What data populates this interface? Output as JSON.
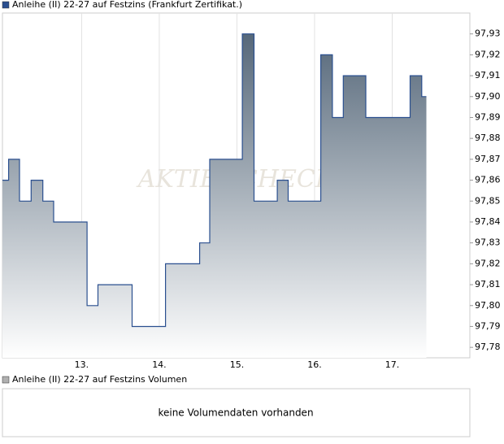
{
  "chart_data": [
    {
      "type": "line",
      "step": "post",
      "watermark": "AKTIENCHECK",
      "x": [
        11.98,
        12.06,
        12.2,
        12.35,
        12.5,
        12.64,
        13.07,
        13.21,
        13.65,
        14.08,
        14.52,
        14.65,
        15.07,
        15.22,
        15.52,
        15.66,
        16.08,
        16.23,
        16.37,
        16.66,
        17.23,
        17.38,
        17.44
      ],
      "series": [
        {
          "name": "Anleihe (II) 22-27 auf Festzins (Frankfurt Zertifikat.)",
          "color": "#2a4f8f",
          "fill_top": "#56687a",
          "values": [
            97.86,
            97.87,
            97.85,
            97.86,
            97.85,
            97.84,
            97.8,
            97.81,
            97.79,
            97.82,
            97.83,
            97.87,
            97.93,
            97.85,
            97.86,
            97.85,
            97.92,
            97.89,
            97.91,
            97.89,
            97.91,
            97.9,
            97.9
          ]
        }
      ],
      "xlim": [
        11.98,
        18.0
      ],
      "xticks": [
        {
          "value": 13,
          "label": "13."
        },
        {
          "value": 14,
          "label": "14."
        },
        {
          "value": 15,
          "label": "15."
        },
        {
          "value": 16,
          "label": "16."
        },
        {
          "value": 17,
          "label": "17."
        }
      ],
      "ylim": [
        97.775,
        97.94
      ],
      "yticks": [
        {
          "value": 97.78,
          "label": "97,78"
        },
        {
          "value": 97.79,
          "label": "97,79"
        },
        {
          "value": 97.8,
          "label": "97,80"
        },
        {
          "value": 97.81,
          "label": "97,81"
        },
        {
          "value": 97.82,
          "label": "97,82"
        },
        {
          "value": 97.83,
          "label": "97,83"
        },
        {
          "value": 97.84,
          "label": "97,84"
        },
        {
          "value": 97.85,
          "label": "97,85"
        },
        {
          "value": 97.86,
          "label": "97,86"
        },
        {
          "value": 97.87,
          "label": "97,87"
        },
        {
          "value": 97.88,
          "label": "97,88"
        },
        {
          "value": 97.89,
          "label": "97,89"
        },
        {
          "value": 97.9,
          "label": "97,90"
        },
        {
          "value": 97.91,
          "label": "97,91"
        },
        {
          "value": 97.92,
          "label": "97,92"
        },
        {
          "value": 97.93,
          "label": "97,93"
        }
      ],
      "grid": "x"
    },
    {
      "type": "bar",
      "series": [
        {
          "name": "Anleihe (II) 22-27 auf Festzins Volumen",
          "color": "#b0b0b0",
          "values": []
        }
      ],
      "annotation": "keine Volumendaten vorhanden"
    }
  ]
}
